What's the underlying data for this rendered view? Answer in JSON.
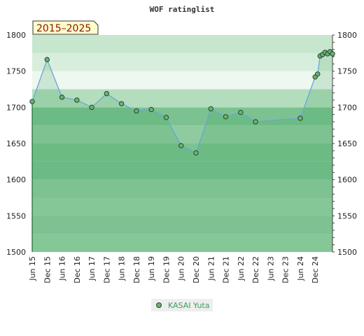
{
  "chart_data": {
    "type": "line",
    "title": "WOF ratinglist",
    "period_label": "2015–2025",
    "ylim": [
      1500,
      1800
    ],
    "y_ticks": [
      1500,
      1550,
      1600,
      1650,
      1700,
      1750,
      1800
    ],
    "x_tick_labels": [
      "Jun 15",
      "Dec 15",
      "Jun 16",
      "Dec 16",
      "Jun 17",
      "Dec 17",
      "Jun 18",
      "Dec 18",
      "Jun 19",
      "Dec 19",
      "Jun 20",
      "Dec 20",
      "Jun 21",
      "Dec 21",
      "Jun 22",
      "Dec 22",
      "Jun 23",
      "Dec 23",
      "Jun 24",
      "Dec 24"
    ],
    "legend_position": "bottom-center",
    "series": [
      {
        "name": "KASAI Yuta",
        "color": "#6fae7a",
        "line_color": "#6aa6d8",
        "x": [
          "2015-06",
          "2015-12",
          "2016-06",
          "2016-12",
          "2017-06",
          "2017-12",
          "2018-06",
          "2018-12",
          "2019-06",
          "2019-12",
          "2020-06",
          "2020-12",
          "2021-06",
          "2021-12",
          "2022-06",
          "2022-12",
          "2024-06",
          "2024-12",
          "2025-01",
          "2025-02",
          "2025-03",
          "2025-04",
          "2025-05",
          "2025-06",
          "2025-07"
        ],
        "values": [
          1708,
          1766,
          1714,
          1710,
          1700,
          1719,
          1705,
          1695,
          1697,
          1686,
          1647,
          1637,
          1698,
          1687,
          1693,
          1680,
          1685,
          1742,
          1746,
          1771,
          1773,
          1776,
          1774,
          1777,
          1774
        ]
      }
    ]
  }
}
